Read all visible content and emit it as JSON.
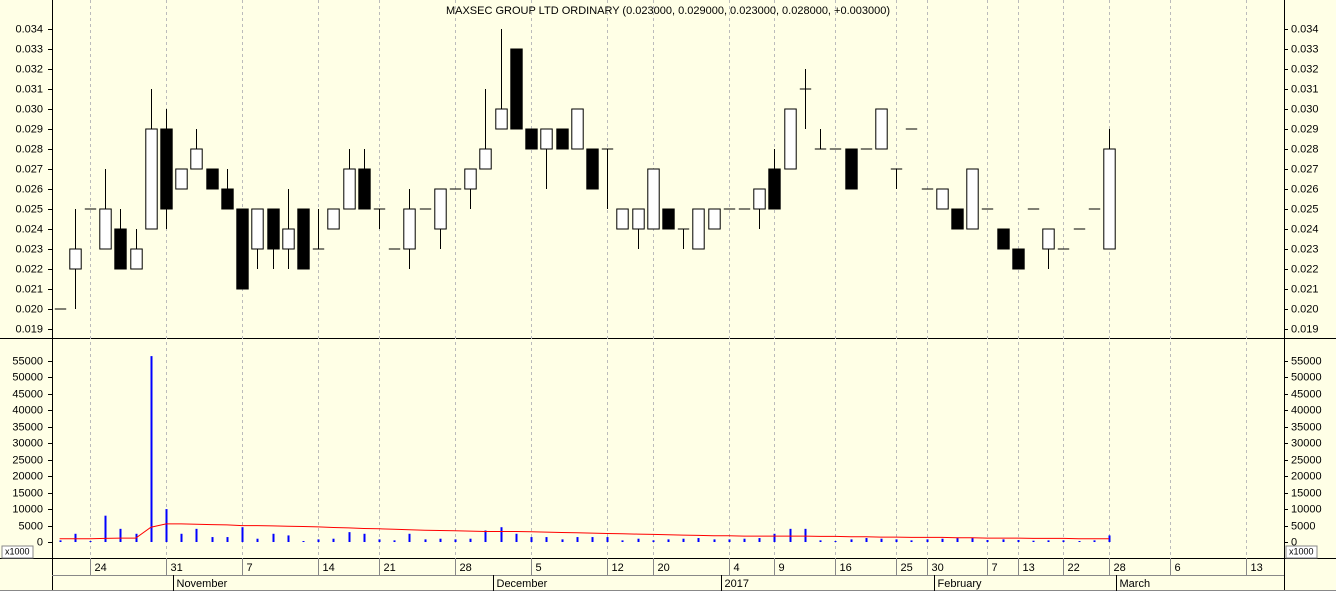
{
  "chart_data": [
    {
      "type": "candlestick",
      "title": "MAXSEC GROUP LTD ORDINARY (0.023000, 0.029000, 0.023000, 0.028000, +0.003000)",
      "open": [
        0.02,
        0.022,
        0.025,
        0.023,
        0.024,
        0.022,
        0.024,
        0.029,
        0.026,
        0.027,
        0.027,
        0.026,
        0.025,
        0.023,
        0.025,
        0.023,
        0.025,
        0.023,
        0.024,
        0.025,
        0.027,
        0.025,
        0.023,
        0.023,
        0.025,
        0.024,
        0.026,
        0.026,
        0.027,
        0.029,
        0.033,
        0.029,
        0.028,
        0.029,
        0.028,
        0.028,
        0.028,
        0.024,
        0.024,
        0.024,
        0.025,
        0.024,
        0.023,
        0.024,
        0.025,
        0.025,
        0.025,
        0.027,
        0.027,
        0.031,
        0.028,
        0.028,
        0.028,
        0.028,
        0.028,
        0.027,
        0.029,
        0.026,
        0.025,
        0.025,
        0.024,
        0.025,
        0.024,
        0.023,
        0.025,
        0.023,
        0.023,
        0.024,
        0.025,
        0.023
      ],
      "high": [
        0.02,
        0.025,
        0.025,
        0.027,
        0.025,
        0.024,
        0.031,
        0.03,
        0.027,
        0.029,
        0.027,
        0.027,
        0.025,
        0.025,
        0.025,
        0.026,
        0.025,
        0.025,
        0.025,
        0.028,
        0.028,
        0.025,
        0.023,
        0.026,
        0.025,
        0.026,
        0.026,
        0.027,
        0.031,
        0.034,
        0.033,
        0.029,
        0.029,
        0.029,
        0.03,
        0.028,
        0.028,
        0.025,
        0.025,
        0.027,
        0.025,
        0.024,
        0.025,
        0.025,
        0.025,
        0.025,
        0.026,
        0.028,
        0.03,
        0.032,
        0.029,
        0.028,
        0.028,
        0.028,
        0.03,
        0.027,
        0.029,
        0.026,
        0.026,
        0.025,
        0.027,
        0.025,
        0.024,
        0.023,
        0.025,
        0.024,
        0.023,
        0.024,
        0.025,
        0.029
      ],
      "low": [
        0.02,
        0.02,
        0.025,
        0.023,
        0.022,
        0.022,
        0.024,
        0.024,
        0.026,
        0.027,
        0.026,
        0.025,
        0.021,
        0.022,
        0.022,
        0.022,
        0.022,
        0.023,
        0.024,
        0.025,
        0.025,
        0.024,
        0.023,
        0.022,
        0.025,
        0.023,
        0.026,
        0.025,
        0.027,
        0.029,
        0.029,
        0.028,
        0.026,
        0.028,
        0.028,
        0.026,
        0.025,
        0.024,
        0.023,
        0.024,
        0.024,
        0.023,
        0.023,
        0.024,
        0.025,
        0.025,
        0.024,
        0.025,
        0.027,
        0.029,
        0.028,
        0.028,
        0.026,
        0.028,
        0.028,
        0.026,
        0.029,
        0.026,
        0.025,
        0.024,
        0.024,
        0.025,
        0.023,
        0.022,
        0.025,
        0.022,
        0.023,
        0.024,
        0.025,
        0.023
      ],
      "close": [
        0.02,
        0.023,
        0.025,
        0.025,
        0.022,
        0.023,
        0.029,
        0.025,
        0.027,
        0.028,
        0.026,
        0.025,
        0.021,
        0.025,
        0.023,
        0.024,
        0.022,
        0.023,
        0.025,
        0.027,
        0.025,
        0.025,
        0.023,
        0.025,
        0.025,
        0.026,
        0.026,
        0.027,
        0.028,
        0.03,
        0.029,
        0.028,
        0.029,
        0.028,
        0.03,
        0.026,
        0.028,
        0.025,
        0.025,
        0.027,
        0.024,
        0.024,
        0.025,
        0.025,
        0.025,
        0.025,
        0.026,
        0.025,
        0.03,
        0.031,
        0.028,
        0.028,
        0.026,
        0.028,
        0.03,
        0.027,
        0.029,
        0.026,
        0.026,
        0.024,
        0.027,
        0.025,
        0.023,
        0.022,
        0.025,
        0.024,
        0.023,
        0.024,
        0.025,
        0.028
      ],
      "ylim": [
        0.01855,
        0.03545
      ],
      "yticks": [
        {
          "value": 0.019,
          "label": "0.019"
        },
        {
          "value": 0.02,
          "label": "0.020"
        },
        0.021,
        0.022,
        0.023,
        0.024,
        0.025,
        0.026,
        0.027,
        0.028,
        0.029,
        {
          "value": 0.03,
          "label": "0.030"
        },
        0.031,
        0.032,
        0.033,
        0.034
      ]
    },
    {
      "type": "bar",
      "values": [
        500,
        2500,
        300,
        8000,
        4000,
        2500,
        56500,
        10000,
        2500,
        4000,
        1500,
        1500,
        4500,
        1000,
        2500,
        2000,
        300,
        800,
        1000,
        3000,
        2500,
        800,
        500,
        2500,
        800,
        1000,
        800,
        1000,
        3500,
        4500,
        2500,
        1500,
        1500,
        800,
        1500,
        1500,
        1500,
        500,
        1000,
        500,
        800,
        1000,
        1200,
        800,
        800,
        1000,
        1200,
        2500,
        4000,
        4000,
        500,
        300,
        800,
        1200,
        1000,
        800,
        500,
        800,
        1000,
        1200,
        1200,
        600,
        800,
        600,
        400,
        500,
        500,
        300,
        500,
        2000
      ],
      "color": "#0000ff",
      "line_values": [
        1000,
        1000,
        1000,
        1100,
        1200,
        1200,
        4500,
        5500,
        5500,
        5400,
        5300,
        5200,
        5000,
        5000,
        4900,
        4800,
        4700,
        4600,
        4400,
        4300,
        4100,
        4000,
        3900,
        3700,
        3600,
        3500,
        3400,
        3300,
        3200,
        3200,
        3200,
        3100,
        3000,
        2900,
        2800,
        2700,
        2600,
        2500,
        2400,
        2300,
        2200,
        2100,
        2000,
        1900,
        1900,
        1800,
        1800,
        1800,
        1800,
        1800,
        1700,
        1700,
        1600,
        1600,
        1500,
        1500,
        1400,
        1400,
        1400,
        1300,
        1300,
        1200,
        1200,
        1200,
        1100,
        1100,
        1100,
        1000,
        1000,
        1000
      ],
      "line_color": "#ff0000",
      "ylim": [
        -2430,
        61700
      ],
      "yticks": [
        0,
        5000,
        10000,
        15000,
        20000,
        25000,
        30000,
        35000,
        40000,
        45000,
        50000,
        55000
      ],
      "scale_label": "x1000",
      "xlim": [
        -0.5,
        80.5
      ],
      "xticks": [
        {
          "value": 2,
          "label": "24"
        },
        {
          "value": 7,
          "label": "31"
        },
        {
          "value": 12,
          "label": "7"
        },
        {
          "value": 17,
          "label": "14"
        },
        {
          "value": 21,
          "label": "21"
        },
        {
          "value": 26,
          "label": "28"
        },
        {
          "value": 31,
          "label": "5"
        },
        {
          "value": 36,
          "label": "12"
        },
        {
          "value": 39,
          "label": "20"
        },
        {
          "value": 44,
          "label": "4"
        },
        {
          "value": 47,
          "label": "9"
        },
        {
          "value": 51,
          "label": "16"
        },
        {
          "value": 55,
          "label": "25"
        },
        {
          "value": 57,
          "label": "30"
        },
        {
          "value": 61,
          "label": "7"
        },
        {
          "value": 63,
          "label": "13"
        },
        {
          "value": 66,
          "label": "22"
        },
        {
          "value": 69,
          "label": "28"
        },
        {
          "value": 73,
          "label": "6"
        },
        {
          "value": 78,
          "label": "13"
        }
      ],
      "months": [
        {
          "value": 8,
          "label": "November"
        },
        {
          "value": 29,
          "label": "December"
        },
        {
          "value": 44,
          "label": "2017"
        },
        {
          "value": 58,
          "label": "February"
        },
        {
          "value": 70,
          "label": "March"
        }
      ]
    }
  ]
}
